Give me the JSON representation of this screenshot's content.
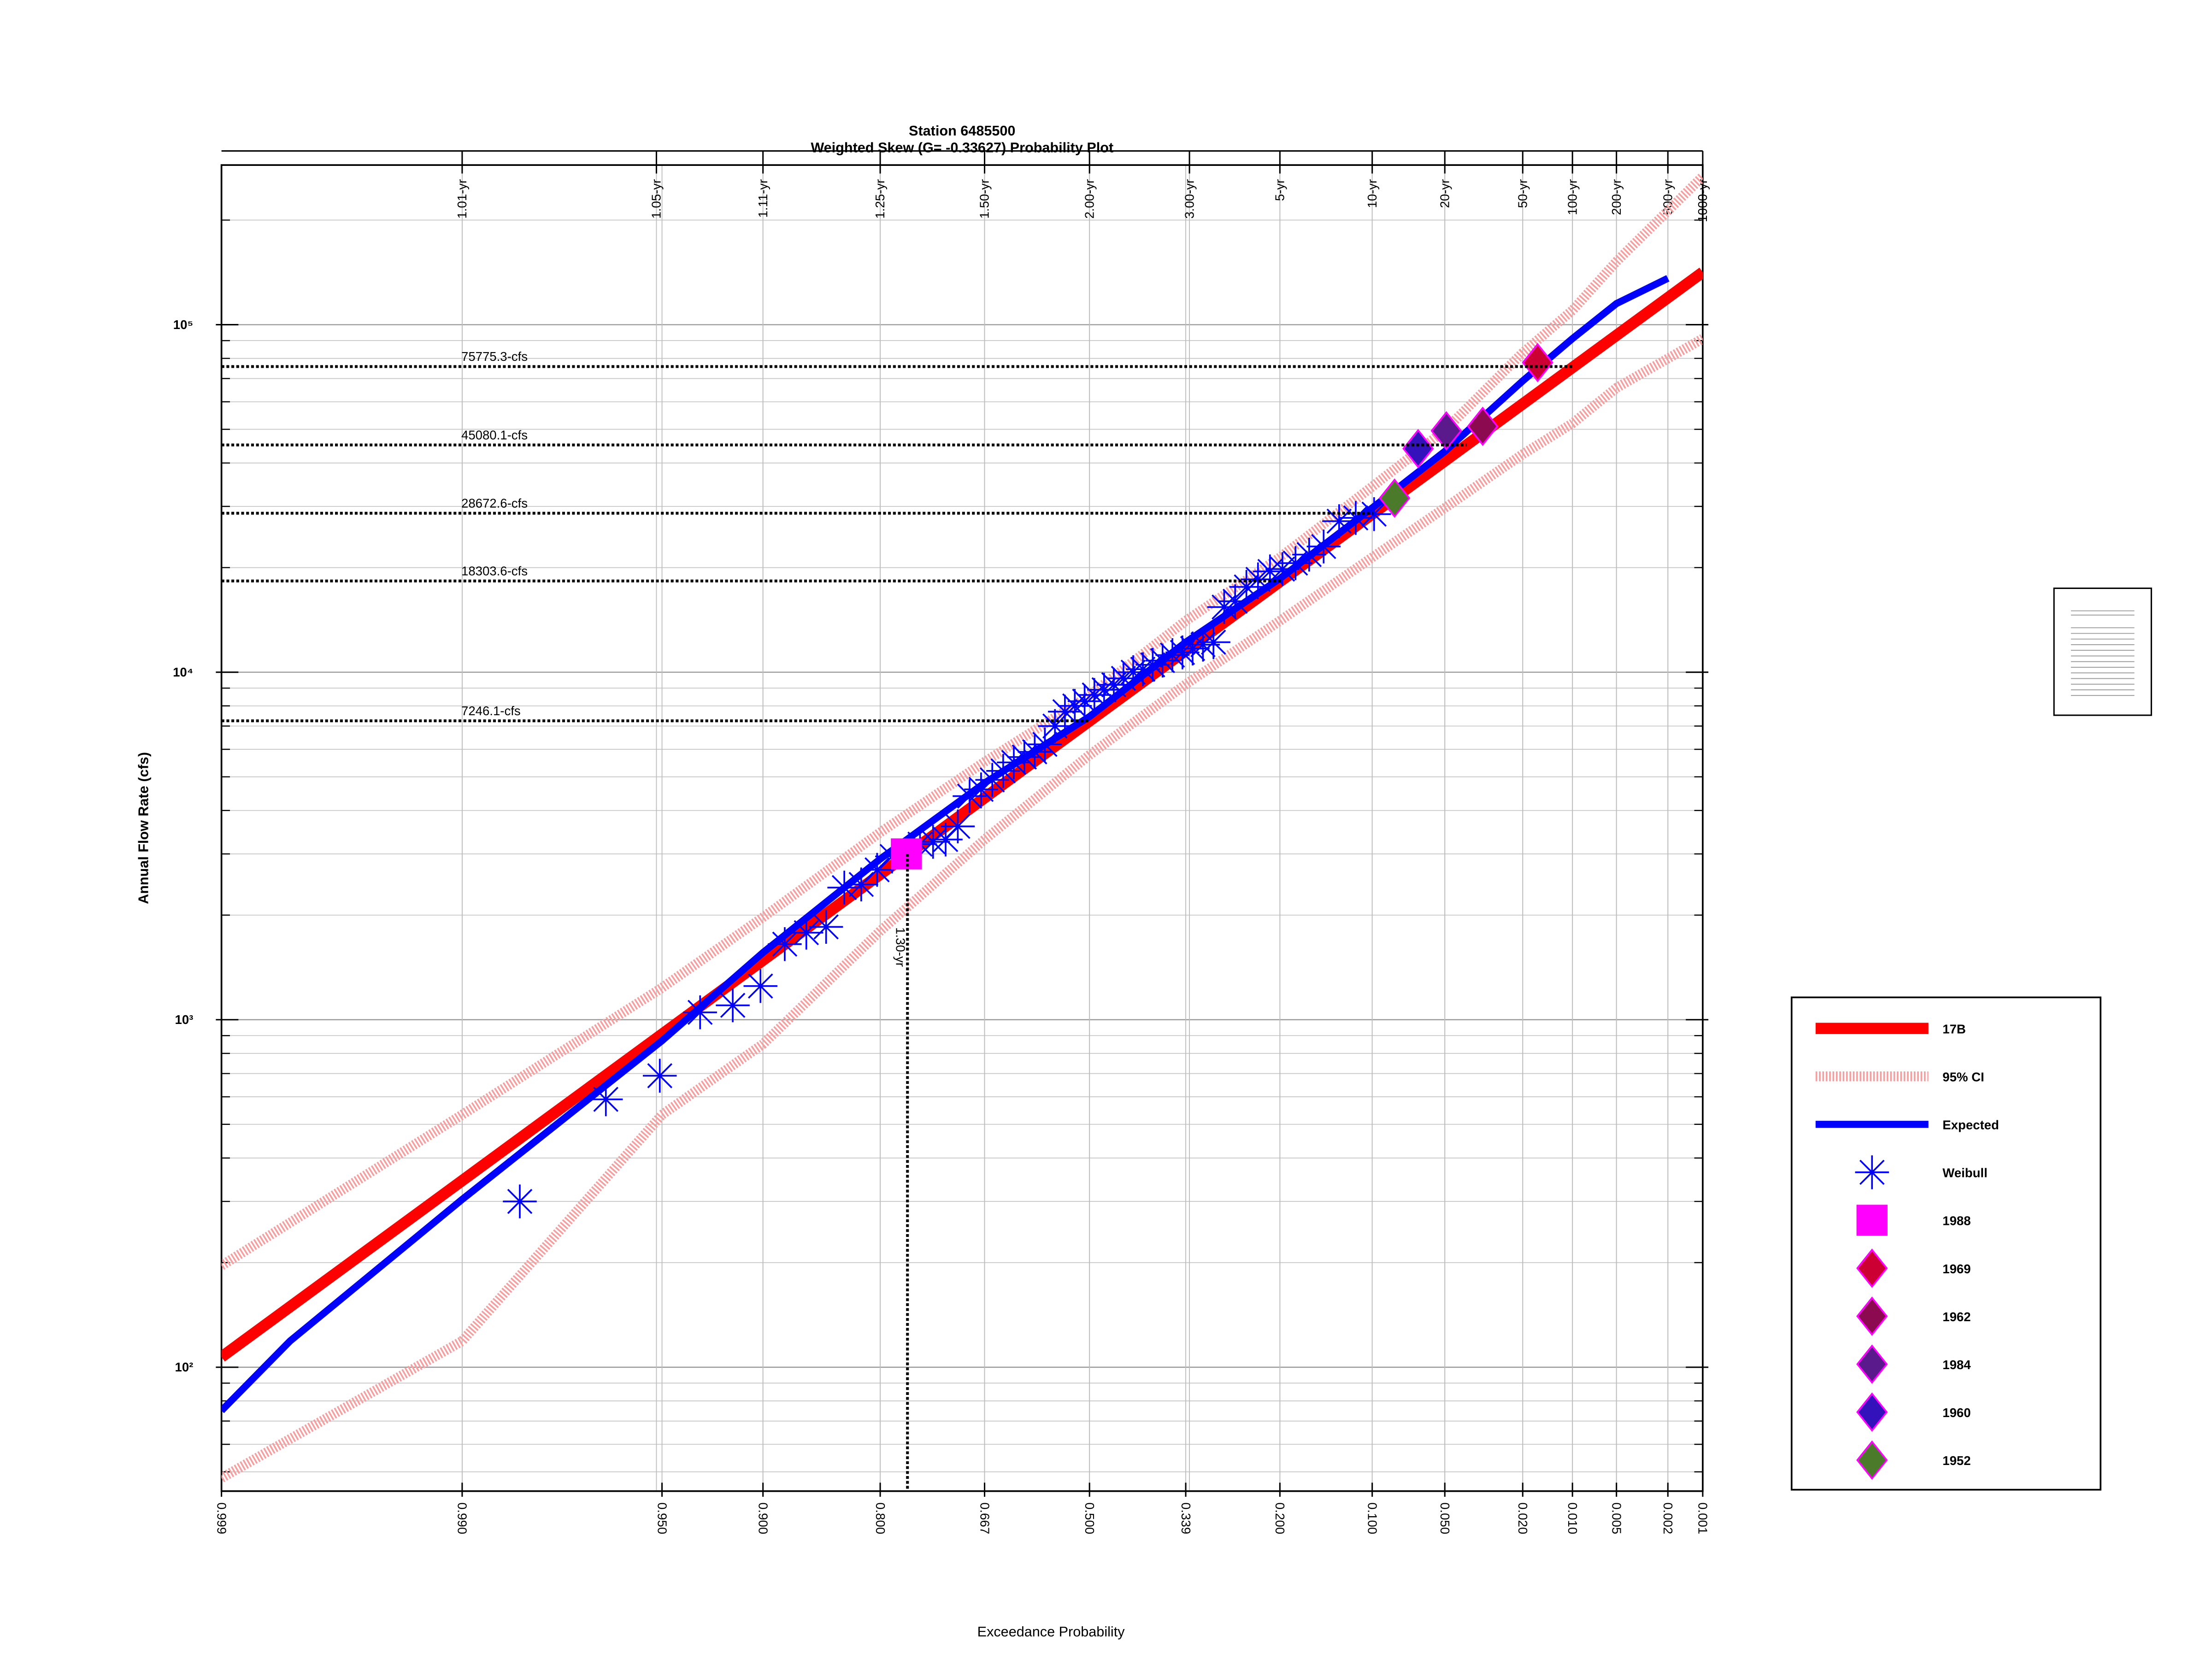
{
  "chart_data": {
    "type": "probability",
    "title": "Station 6485500",
    "subtitle": "Weighted Skew (G= -0.33627) Probability Plot",
    "x_label": "Exceedance Probability",
    "y_label": "Annual Flow Rate (cfs)",
    "skew": -0.33627,
    "xscale": "pearson3-probability",
    "yscale": "log",
    "grid": true,
    "legend": "right",
    "xlim": [
      0.999,
      0.001
    ],
    "ylim": [
      44,
      288000
    ],
    "xticks": [
      0.999,
      {
        "value": 0.99,
        "label": "0.990"
      },
      {
        "value": 0.95,
        "label": "0.950"
      },
      {
        "value": 0.9,
        "label": "0.900"
      },
      {
        "value": 0.8,
        "label": "0.800"
      },
      0.667,
      {
        "value": 0.5,
        "label": "0.500"
      },
      0.339,
      {
        "value": 0.2,
        "label": "0.200"
      },
      {
        "value": 0.1,
        "label": "0.100"
      },
      {
        "value": 0.05,
        "label": "0.050"
      },
      {
        "value": 0.02,
        "label": "0.020"
      },
      {
        "value": 0.01,
        "label": "0.010"
      },
      0.005,
      0.002,
      0.001
    ],
    "x2ticks": [
      {
        "value": 0.99,
        "label": "1.01-yr"
      },
      {
        "value": 0.952,
        "label": "1.05-yr"
      },
      {
        "value": 0.9,
        "label": "1.11-yr"
      },
      {
        "value": 0.8,
        "label": "1.25-yr"
      },
      {
        "value": 0.667,
        "label": "1.50-yr"
      },
      {
        "value": 0.5,
        "label": "2.00-yr"
      },
      {
        "value": 0.333,
        "label": "3.00-yr"
      },
      {
        "value": 0.2,
        "label": "5-yr"
      },
      {
        "value": 0.1,
        "label": "10-yr"
      },
      {
        "value": 0.05,
        "label": "20-yr"
      },
      {
        "value": 0.02,
        "label": "50-yr"
      },
      {
        "value": 0.01,
        "label": "100-yr"
      },
      {
        "value": 0.005,
        "label": "200-yr"
      },
      {
        "value": 0.002,
        "label": "500-yr"
      },
      {
        "value": 0.001,
        "label": "1000-yr"
      }
    ],
    "yticks": [
      {
        "value": 100,
        "label": "10²"
      },
      {
        "value": 1000,
        "label": "10³"
      },
      {
        "value": 10000,
        "label": "10⁴"
      },
      {
        "value": 100000,
        "label": "10⁵"
      }
    ],
    "yminorticks": [
      50,
      60,
      70,
      80,
      90,
      200,
      300,
      400,
      500,
      600,
      700,
      800,
      900,
      2000,
      3000,
      4000,
      5000,
      6000,
      7000,
      8000,
      9000,
      20000,
      30000,
      40000,
      50000,
      60000,
      70000,
      80000,
      90000,
      200000
    ],
    "annotations": [
      {
        "value": 75775.3,
        "label": "75775.3-cfs"
      },
      {
        "value": 45080.1,
        "label": "45080.1-cfs"
      },
      {
        "value": 28672.6,
        "label": "28672.6-cfs"
      },
      {
        "value": 18303.6,
        "label": "18303.6-cfs"
      },
      {
        "value": 7246.1,
        "label": "7246.1-cfs"
      }
    ],
    "vertical_annotation": {
      "x": 0.7692,
      "value": 3000,
      "label": "1.30-yr"
    },
    "series": [
      {
        "name": "17B",
        "style": "thick-line",
        "color": "#ff0000",
        "x": [
          0.999,
          0.5,
          0.001
        ],
        "values": [
          107,
          7240,
          141600
        ]
      },
      {
        "name": "95% CI",
        "style": "hatched-band",
        "color": "#f4a0a0",
        "x": [
          0.999,
          0.99,
          0.95,
          0.9,
          0.8,
          0.667,
          0.5,
          0.339,
          0.2,
          0.1,
          0.05,
          0.02,
          0.01,
          0.005,
          0.001
        ],
        "upper": [
          196,
          533,
          1236,
          1972,
          3460,
          5520,
          8570,
          14060,
          21400,
          34200,
          49700,
          83000,
          110000,
          152000,
          267000
        ],
        "lower": [
          48,
          119,
          533,
          851,
          1800,
          3300,
          5780,
          9230,
          14060,
          21400,
          29700,
          42400,
          52000,
          65800,
          91200
        ]
      },
      {
        "name": "Expected",
        "style": "line",
        "color": "#0000ff",
        "x": [
          0.999,
          0.998,
          0.99,
          0.95,
          0.9,
          0.8,
          0.667,
          0.5,
          0.339,
          0.2,
          0.1,
          0.05,
          0.02,
          0.01,
          0.005,
          0.002
        ],
        "values": [
          75,
          119,
          304,
          870,
          1560,
          2900,
          4800,
          7450,
          12200,
          18600,
          29700,
          43200,
          68900,
          91200,
          115000,
          136000
        ]
      },
      {
        "name": "Weibull",
        "style": "asterisk",
        "color": "#0000ff",
        "x": [
          0.0984,
          0.1148,
          0.1311,
          0.1475,
          0.1639,
          0.1803,
          0.1967,
          0.2131,
          0.2295,
          0.2459,
          0.2623,
          0.2787,
          0.2951,
          0.3115,
          0.3279,
          0.3443,
          0.3607,
          0.377,
          0.3934,
          0.4098,
          0.4262,
          0.4426,
          0.459,
          0.4754,
          0.4918,
          0.5082,
          0.5246,
          0.541,
          0.5574,
          0.5738,
          0.5902,
          0.6066,
          0.623,
          0.6393,
          0.6557,
          0.6721,
          0.6885,
          0.7049,
          0.7213,
          0.7377,
          0.7541,
          0.7869,
          0.8033,
          0.8197,
          0.8361,
          0.8525,
          0.8689,
          0.8852,
          0.9016,
          0.918,
          0.9344,
          0.9508,
          0.9672,
          0.9836
        ],
        "values": [
          28500,
          27800,
          27200,
          23000,
          21800,
          20600,
          19800,
          19500,
          18500,
          17600,
          16000,
          15400,
          12200,
          12000,
          11700,
          11400,
          11200,
          10800,
          10500,
          10200,
          10000,
          9600,
          9200,
          8900,
          8600,
          8250,
          8000,
          7700,
          7000,
          6200,
          5900,
          5700,
          5500,
          5200,
          4900,
          4600,
          4400,
          3600,
          3300,
          3250,
          3200,
          2950,
          2700,
          2450,
          2400,
          1850,
          1780,
          1650,
          1250,
          1100,
          1050,
          690,
          590,
          300
        ]
      },
      {
        "name": "1988",
        "style": "square",
        "color": "#ff00ff",
        "x": [
          0.7705
        ],
        "values": [
          3000
        ]
      },
      {
        "name": "1969",
        "style": "diamond",
        "color": "#cc0033",
        "x": [
          0.0164
        ],
        "values": [
          77800
        ]
      },
      {
        "name": "1962",
        "style": "diamond",
        "color": "#8b0a50",
        "x": [
          0.0328
        ],
        "values": [
          51000
        ]
      },
      {
        "name": "1984",
        "style": "diamond",
        "color": "#5a1a8c",
        "x": [
          0.0492
        ],
        "values": [
          49500
        ]
      },
      {
        "name": "1960",
        "style": "diamond",
        "color": "#3311bb",
        "x": [
          0.0656
        ],
        "values": [
          44000
        ]
      },
      {
        "name": "1952",
        "style": "diamond",
        "color": "#4a7a2a",
        "x": [
          0.082
        ],
        "values": [
          31700
        ]
      }
    ]
  }
}
